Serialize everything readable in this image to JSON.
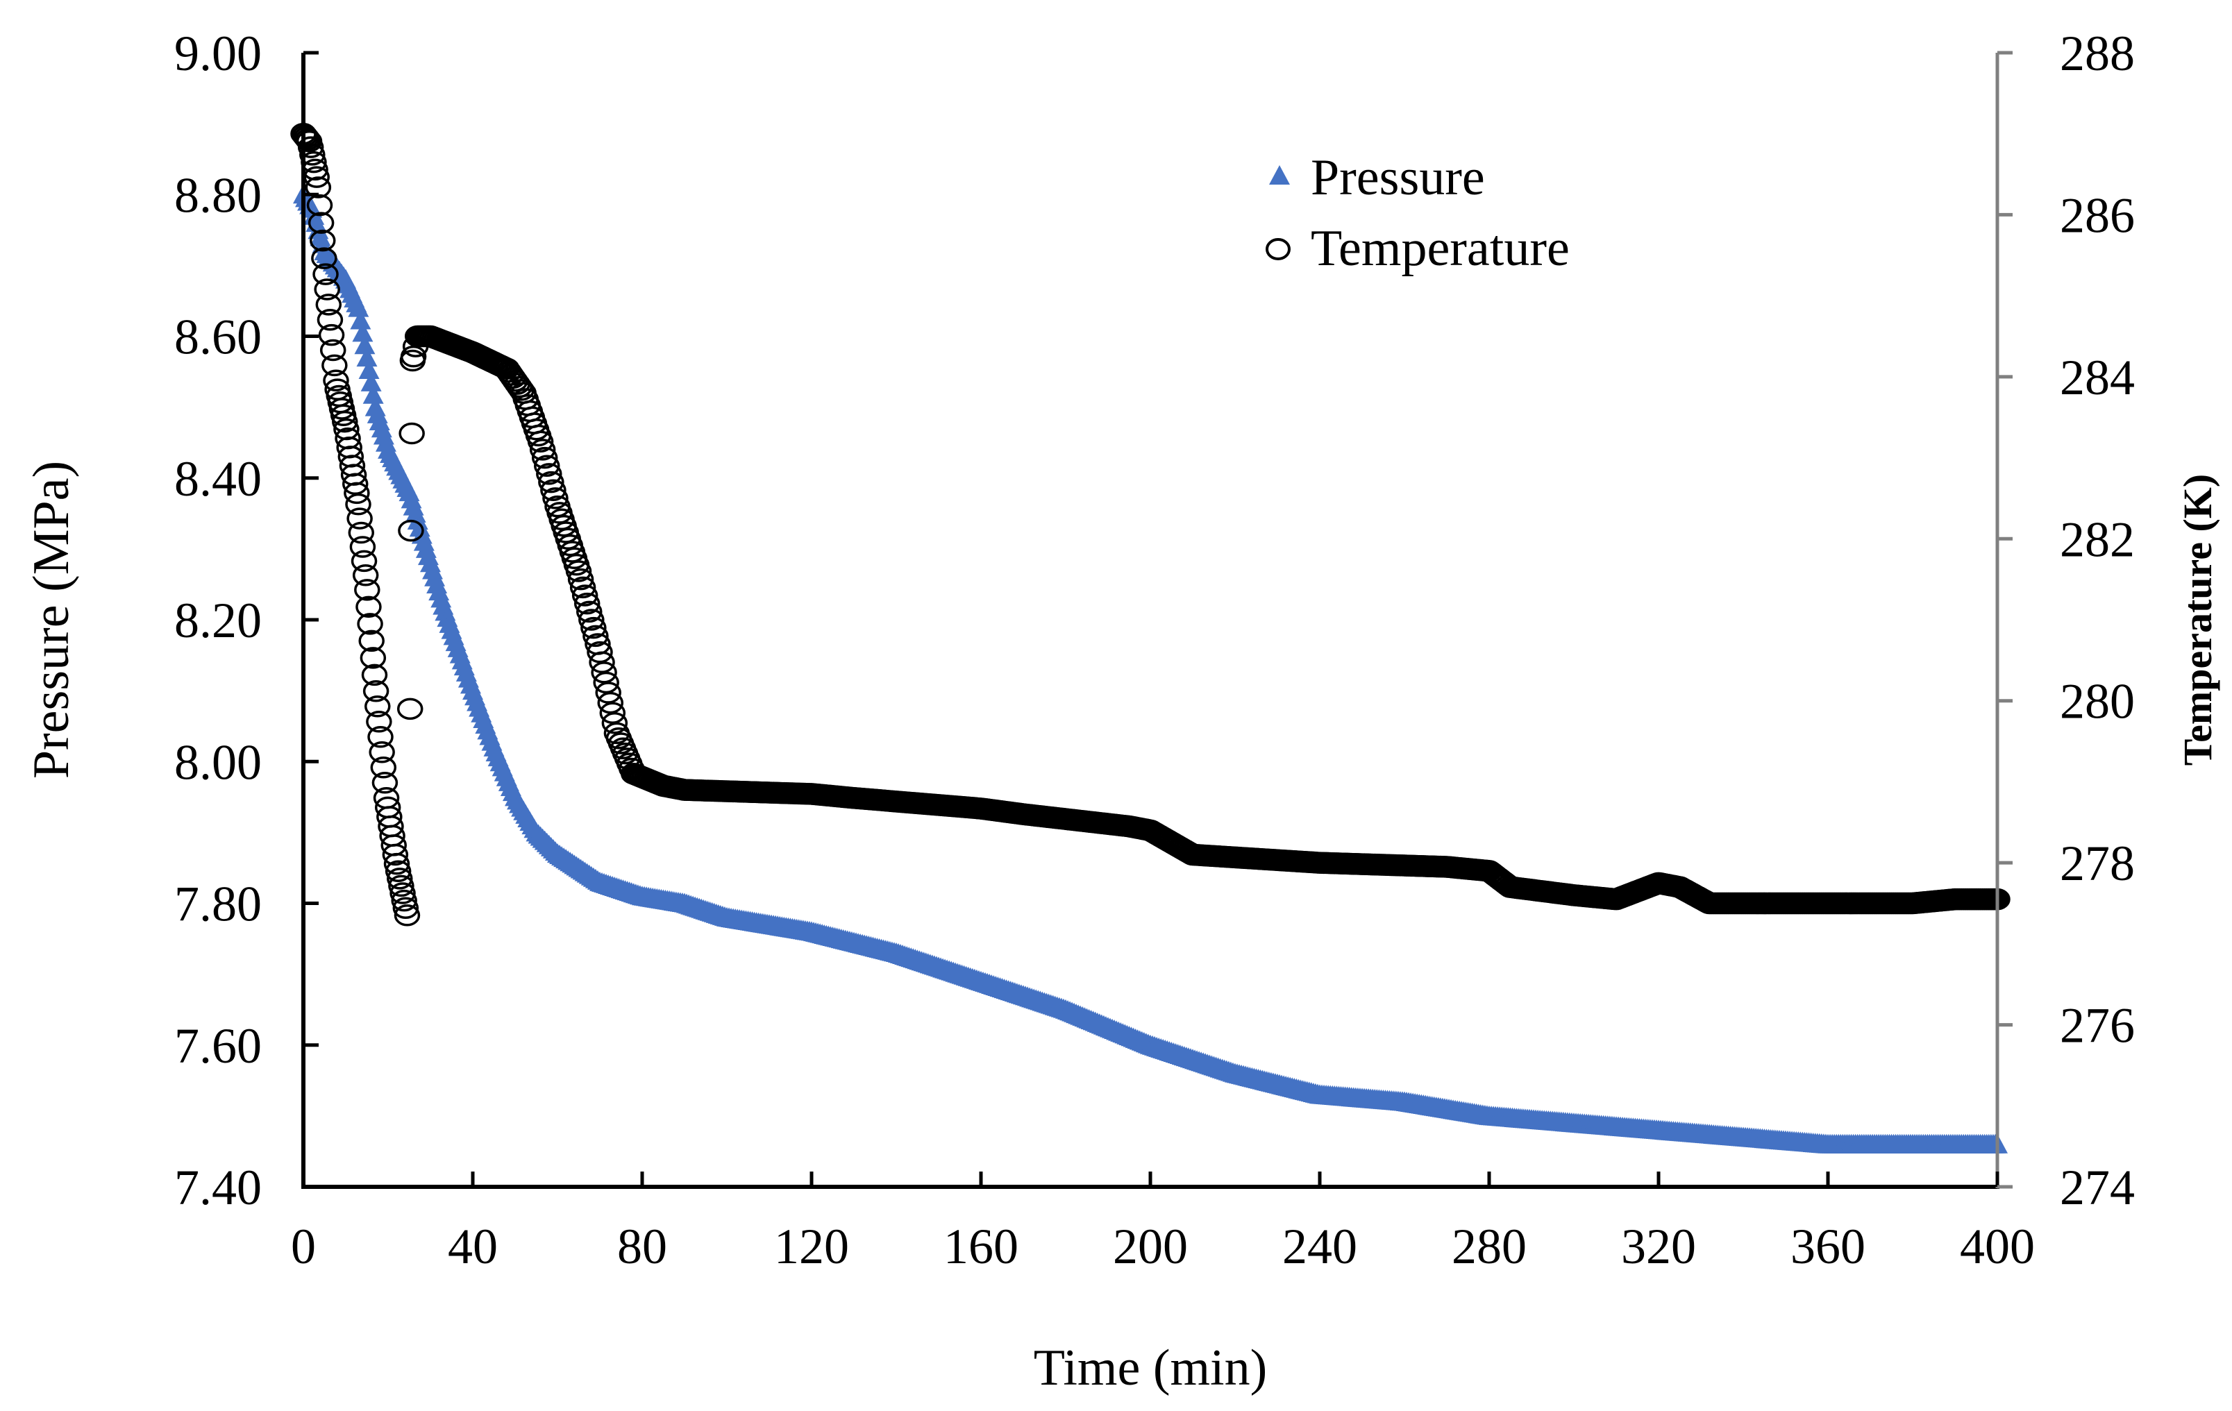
{
  "chart_data": {
    "type": "scatter",
    "xlabel": "Time (min)",
    "ylabel_left": "Pressure (MPa)",
    "ylabel_right": "Temperature (K)",
    "xlim": [
      0,
      400
    ],
    "ylim_left": [
      7.4,
      9.0
    ],
    "ylim_right": [
      274,
      288
    ],
    "x_ticks": [
      "0",
      "40",
      "80",
      "120",
      "160",
      "200",
      "240",
      "280",
      "320",
      "360",
      "400"
    ],
    "y_ticks_left": [
      "7.40",
      "7.60",
      "7.80",
      "8.00",
      "8.20",
      "8.40",
      "8.60",
      "8.80",
      "9.00"
    ],
    "y_ticks_right": [
      "274",
      "276",
      "278",
      "280",
      "282",
      "284",
      "286",
      "288"
    ],
    "grid": false,
    "legend_position": "top-right",
    "series": [
      {
        "name": "Pressure",
        "axis": "left",
        "marker": "triangle",
        "color": "#4472C4",
        "points": [
          [
            0,
            8.8
          ],
          [
            2,
            8.78
          ],
          [
            5,
            8.72
          ],
          [
            10,
            8.68
          ],
          [
            13,
            8.64
          ],
          [
            17,
            8.5
          ],
          [
            20,
            8.44
          ],
          [
            25,
            8.38
          ],
          [
            28,
            8.32
          ],
          [
            33,
            8.22
          ],
          [
            40,
            8.1
          ],
          [
            45,
            8.02
          ],
          [
            50,
            7.95
          ],
          [
            55,
            7.9
          ],
          [
            60,
            7.87
          ],
          [
            70,
            7.83
          ],
          [
            80,
            7.81
          ],
          [
            90,
            7.8
          ],
          [
            100,
            7.78
          ],
          [
            120,
            7.76
          ],
          [
            140,
            7.73
          ],
          [
            150,
            7.71
          ],
          [
            160,
            7.69
          ],
          [
            180,
            7.65
          ],
          [
            200,
            7.6
          ],
          [
            220,
            7.56
          ],
          [
            240,
            7.53
          ],
          [
            260,
            7.52
          ],
          [
            280,
            7.5
          ],
          [
            300,
            7.49
          ],
          [
            320,
            7.48
          ],
          [
            340,
            7.47
          ],
          [
            360,
            7.46
          ],
          [
            400,
            7.46
          ]
        ]
      },
      {
        "name": "Temperature",
        "axis": "right",
        "marker": "circle",
        "color": "#000000",
        "points": [
          [
            0,
            287.0
          ],
          [
            1.5,
            286.9
          ],
          [
            3.4,
            286.4
          ],
          [
            5,
            285.4
          ],
          [
            7.8,
            283.9
          ],
          [
            10,
            283.4
          ],
          [
            12.8,
            282.5
          ],
          [
            15,
            281.4
          ],
          [
            17,
            280.2
          ],
          [
            19.6,
            278.8
          ],
          [
            22,
            278.0
          ],
          [
            24.7,
            277.3
          ],
          [
            25.2,
            279.9
          ],
          [
            25.4,
            282.1
          ],
          [
            25.6,
            283.3
          ],
          [
            25.8,
            284.2
          ],
          [
            27,
            284.5
          ],
          [
            30,
            284.5
          ],
          [
            35,
            284.4
          ],
          [
            40,
            284.3
          ],
          [
            48,
            284.1
          ],
          [
            52,
            283.8
          ],
          [
            56,
            283.2
          ],
          [
            60,
            282.4
          ],
          [
            65,
            281.6
          ],
          [
            70,
            280.6
          ],
          [
            74,
            279.6
          ],
          [
            78,
            279.1
          ],
          [
            85,
            278.95
          ],
          [
            90,
            278.9
          ],
          [
            120,
            278.85
          ],
          [
            130,
            278.8
          ],
          [
            160,
            278.67
          ],
          [
            170,
            278.6
          ],
          [
            195,
            278.45
          ],
          [
            200,
            278.4
          ],
          [
            210,
            278.1
          ],
          [
            240,
            278.0
          ],
          [
            270,
            277.95
          ],
          [
            280,
            277.9
          ],
          [
            285,
            277.7
          ],
          [
            300,
            277.6
          ],
          [
            310,
            277.55
          ],
          [
            320,
            277.75
          ],
          [
            325,
            277.7
          ],
          [
            332,
            277.5
          ],
          [
            380,
            277.5
          ],
          [
            390,
            277.55
          ],
          [
            400,
            277.55
          ]
        ]
      }
    ]
  }
}
